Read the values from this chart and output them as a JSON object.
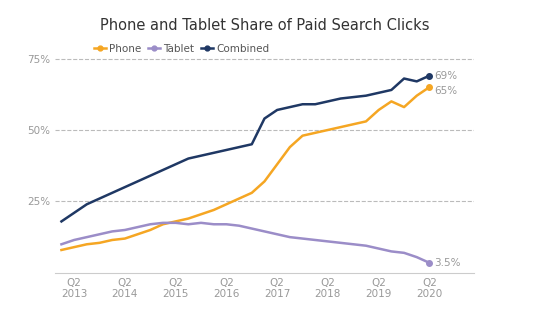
{
  "title": "Phone and Tablet Share of Paid Search Clicks",
  "background_color": "#ffffff",
  "grid_color": "#bbbbbb",
  "phone_color": "#f5a623",
  "tablet_color": "#9b8dc8",
  "combined_color": "#1f3864",
  "ylim": [
    0,
    82
  ],
  "yticks": [
    25,
    50,
    75
  ],
  "legend_labels": [
    "Phone",
    "Tablet",
    "Combined"
  ],
  "x_labels": [
    "Q2\n2013",
    "Q2\n2014",
    "Q2\n2015",
    "Q2\n2016",
    "Q2\n2017",
    "Q2\n2018",
    "Q2\n2019",
    "Q2\n2020"
  ],
  "end_labels": {
    "phone": "65%",
    "tablet": "3.5%",
    "combined": "69%"
  },
  "phone": [
    8.0,
    9.0,
    10.0,
    10.5,
    11.5,
    12.0,
    13.5,
    15.0,
    17.0,
    18.0,
    19.0,
    20.5,
    22.0,
    24.0,
    26.0,
    28.0,
    32.0,
    38.0,
    44.0,
    48.0,
    49.0,
    50.0,
    51.0,
    52.0,
    53.0,
    57.0,
    60.0,
    58.0,
    62.0,
    65.0
  ],
  "tablet": [
    10.0,
    11.5,
    12.5,
    13.5,
    14.5,
    15.0,
    16.0,
    17.0,
    17.5,
    17.5,
    17.0,
    17.5,
    17.0,
    17.0,
    16.5,
    15.5,
    14.5,
    13.5,
    12.5,
    12.0,
    11.5,
    11.0,
    10.5,
    10.0,
    9.5,
    8.5,
    7.5,
    7.0,
    5.5,
    3.5
  ],
  "combined": [
    18.0,
    21.0,
    24.0,
    26.0,
    28.0,
    30.0,
    32.0,
    34.0,
    36.0,
    38.0,
    40.0,
    41.0,
    42.0,
    43.0,
    44.0,
    45.0,
    54.0,
    57.0,
    58.0,
    59.0,
    59.0,
    60.0,
    61.0,
    61.5,
    62.0,
    63.0,
    64.0,
    68.0,
    67.0,
    69.0
  ]
}
